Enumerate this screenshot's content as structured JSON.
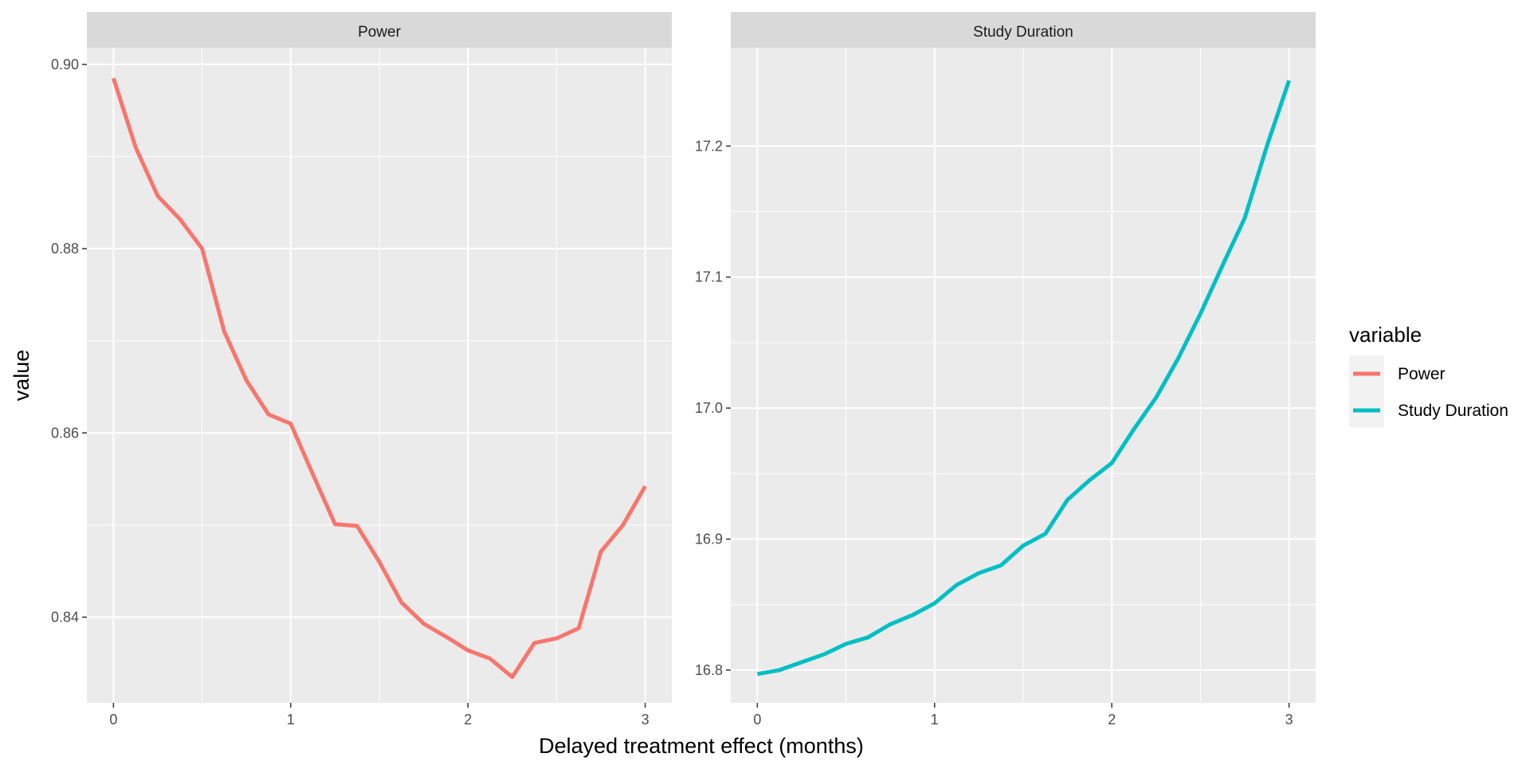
{
  "chart_data": {
    "type": "line",
    "xlabel": "Delayed treatment effect (months)",
    "ylabel": "value",
    "legend": {
      "title": "variable",
      "placement": "right",
      "entries": [
        {
          "label": "Power",
          "color": "#F8766D"
        },
        {
          "label": "Study Duration",
          "color": "#00BFC4"
        }
      ]
    },
    "grid": true,
    "facets": [
      {
        "title": "Power",
        "color": "#F8766D",
        "xlim": [
          -0.15,
          3.15
        ],
        "ylim": [
          0.8307,
          0.9018
        ],
        "x_ticks": [
          0,
          1,
          2,
          3
        ],
        "y_ticks": [
          0.84,
          0.86,
          0.88,
          0.9
        ],
        "y_tick_labels": [
          "0.84",
          "0.86",
          "0.88",
          "0.90"
        ],
        "x": [
          0,
          0.125,
          0.25,
          0.375,
          0.5,
          0.625,
          0.75,
          0.875,
          1,
          1.125,
          1.25,
          1.375,
          1.5,
          1.625,
          1.75,
          1.875,
          2,
          2.125,
          2.25,
          2.375,
          2.5,
          2.625,
          2.75,
          2.875,
          3
        ],
        "values": [
          0.8985,
          0.891,
          0.8857,
          0.8832,
          0.88,
          0.871,
          0.8657,
          0.862,
          0.861,
          0.8555,
          0.8501,
          0.8499,
          0.846,
          0.8416,
          0.8393,
          0.8379,
          0.8364,
          0.8355,
          0.8335,
          0.8372,
          0.8377,
          0.8388,
          0.8471,
          0.85,
          0.8542
        ]
      },
      {
        "title": "Study Duration",
        "color": "#00BFC4",
        "xlim": [
          -0.15,
          3.15
        ],
        "ylim": [
          16.775,
          17.275
        ],
        "x_ticks": [
          0,
          1,
          2,
          3
        ],
        "y_ticks": [
          16.8,
          16.9,
          17.0,
          17.1,
          17.2
        ],
        "y_tick_labels": [
          "16.8",
          "16.9",
          "17.0",
          "17.1",
          "17.2"
        ],
        "x": [
          0,
          0.125,
          0.25,
          0.375,
          0.5,
          0.625,
          0.75,
          0.875,
          1,
          1.125,
          1.25,
          1.375,
          1.5,
          1.625,
          1.75,
          1.875,
          2,
          2.125,
          2.25,
          2.375,
          2.5,
          2.625,
          2.75,
          2.875,
          3
        ],
        "values": [
          16.797,
          16.8,
          16.806,
          16.812,
          16.82,
          16.825,
          16.835,
          16.842,
          16.851,
          16.865,
          16.874,
          16.88,
          16.895,
          16.904,
          16.93,
          16.945,
          16.958,
          16.984,
          17.008,
          17.038,
          17.072,
          17.109,
          17.145,
          17.2,
          17.25
        ]
      }
    ]
  }
}
